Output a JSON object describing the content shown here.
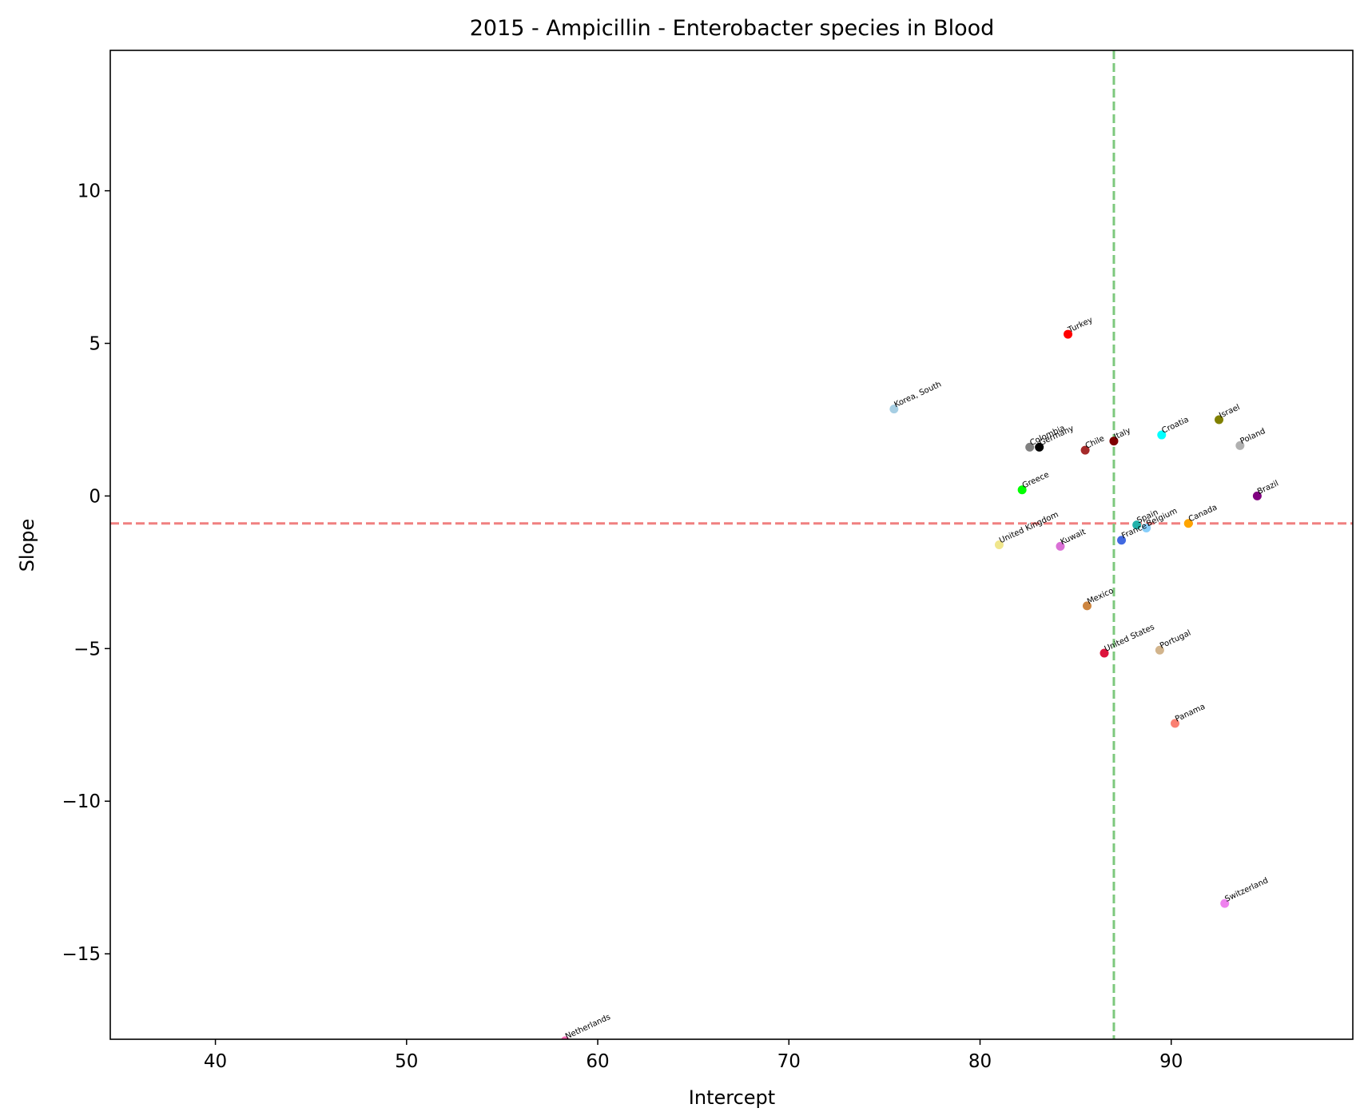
{
  "chart_data": {
    "type": "scatter",
    "title": "2015 - Ampicillin - Enterobacter species in Blood",
    "xlabel": "Intercept",
    "ylabel": "Slope",
    "xlim": [
      34.5,
      99.5
    ],
    "ylim": [
      -17.8,
      14.6
    ],
    "xticks": [
      40,
      50,
      60,
      70,
      80,
      90
    ],
    "yticks": [
      10,
      5,
      0,
      -5,
      -10,
      -15
    ],
    "xtick_labels": [
      "40",
      "50",
      "60",
      "70",
      "80",
      "90"
    ],
    "ytick_labels": [
      "10",
      "5",
      "0",
      "−5",
      "−10",
      "−15"
    ],
    "grid": false,
    "reference_lines": {
      "horizontal": {
        "y": -0.9,
        "color": "#f08080",
        "style": "dashed"
      },
      "vertical": {
        "x": 87.0,
        "color": "#7dc87d",
        "style": "dashed"
      }
    },
    "points": [
      {
        "label": "Turkey",
        "x": 84.6,
        "y": 5.3,
        "color": "#ff0000"
      },
      {
        "label": "Korea, South",
        "x": 75.5,
        "y": 2.85,
        "color": "#a6cee3"
      },
      {
        "label": "Colombia",
        "x": 82.6,
        "y": 1.6,
        "color": "#808080"
      },
      {
        "label": "Germany",
        "x": 83.1,
        "y": 1.6,
        "color": "#000000"
      },
      {
        "label": "Chile",
        "x": 85.5,
        "y": 1.5,
        "color": "#a52a2a"
      },
      {
        "label": "Italy",
        "x": 87.0,
        "y": 1.8,
        "color": "#800000"
      },
      {
        "label": "Croatia",
        "x": 89.5,
        "y": 2.0,
        "color": "#00ffff"
      },
      {
        "label": "Israel",
        "x": 92.5,
        "y": 2.5,
        "color": "#808000"
      },
      {
        "label": "Poland",
        "x": 93.6,
        "y": 1.65,
        "color": "#b0b0b0"
      },
      {
        "label": "Greece",
        "x": 82.2,
        "y": 0.2,
        "color": "#00ff00"
      },
      {
        "label": "Brazil",
        "x": 94.5,
        "y": 0.0,
        "color": "#800080"
      },
      {
        "label": "United Kingdom",
        "x": 81.0,
        "y": -1.6,
        "color": "#f0e68c"
      },
      {
        "label": "Kuwait",
        "x": 84.2,
        "y": -1.65,
        "color": "#da70d6"
      },
      {
        "label": "Spain",
        "x": 88.2,
        "y": -0.95,
        "color": "#20b2aa"
      },
      {
        "label": "Belgium",
        "x": 88.7,
        "y": -1.05,
        "color": "#87cefa"
      },
      {
        "label": "France",
        "x": 87.4,
        "y": -1.45,
        "color": "#4169e1"
      },
      {
        "label": "Canada",
        "x": 90.9,
        "y": -0.9,
        "color": "#ffa500"
      },
      {
        "label": "Mexico",
        "x": 85.6,
        "y": -3.6,
        "color": "#cd853f"
      },
      {
        "label": "United States",
        "x": 86.5,
        "y": -5.15,
        "color": "#dc143c"
      },
      {
        "label": "Portugal",
        "x": 89.4,
        "y": -5.05,
        "color": "#d2b48c"
      },
      {
        "label": "Panama",
        "x": 90.2,
        "y": -7.45,
        "color": "#fa8072"
      },
      {
        "label": "Switzerland",
        "x": 92.8,
        "y": -13.35,
        "color": "#ee82ee"
      },
      {
        "label": "Netherlands",
        "x": 58.3,
        "y": -17.85,
        "color": "#ff69b4"
      }
    ]
  }
}
